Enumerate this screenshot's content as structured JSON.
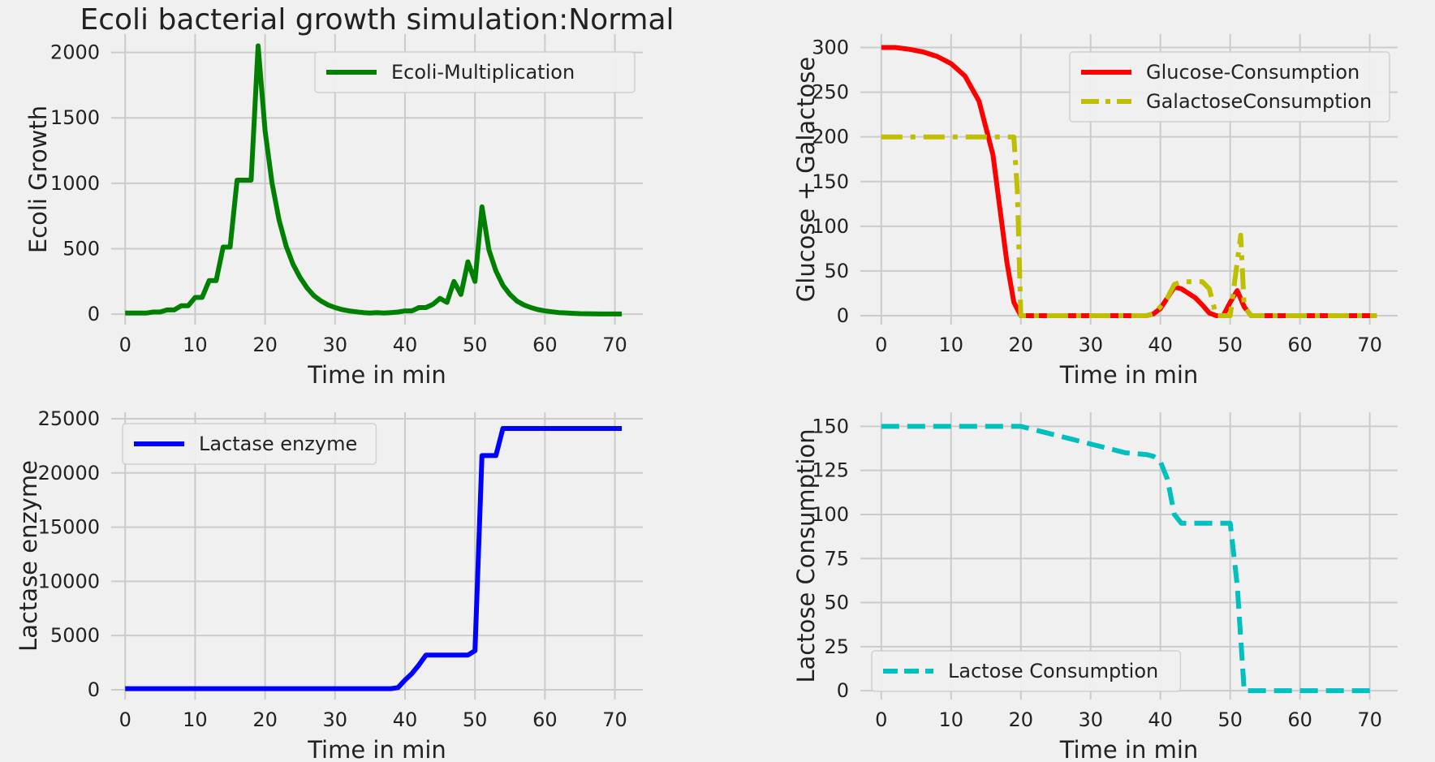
{
  "chart_data": [
    {
      "type": "line",
      "title": "Ecoli bacterial growth simulation:Normal",
      "xlabel": "Time in min",
      "ylabel": "Ecoli Growth",
      "xlim": [
        -2,
        74
      ],
      "ylim": [
        -80,
        2140
      ],
      "xticks": [
        0,
        10,
        20,
        30,
        40,
        50,
        60,
        70
      ],
      "yticks": [
        0,
        500,
        1000,
        1500,
        2000
      ],
      "grid": true,
      "legend_position": "top-right",
      "series": [
        {
          "name": "Ecoli-Multiplication",
          "color": "#008000",
          "style": "solid",
          "x": [
            0,
            1,
            2,
            3,
            4,
            5,
            6,
            7,
            8,
            9,
            10,
            11,
            12,
            13,
            14,
            15,
            16,
            17,
            18,
            19,
            20,
            21,
            22,
            23,
            24,
            25,
            26,
            27,
            28,
            29,
            30,
            31,
            32,
            33,
            34,
            35,
            36,
            37,
            38,
            39,
            40,
            41,
            42,
            43,
            44,
            45,
            46,
            47,
            48,
            49,
            50,
            51,
            52,
            53,
            54,
            55,
            56,
            57,
            58,
            59,
            60,
            61,
            62,
            63,
            64,
            65,
            66,
            67,
            68,
            69,
            70,
            71
          ],
          "y": [
            8,
            8,
            8,
            8,
            16,
            16,
            32,
            32,
            64,
            64,
            128,
            128,
            256,
            256,
            512,
            512,
            1024,
            1024,
            1024,
            2050,
            1400,
            1000,
            720,
            520,
            380,
            280,
            200,
            140,
            100,
            70,
            50,
            35,
            25,
            18,
            12,
            8,
            12,
            8,
            12,
            16,
            25,
            25,
            50,
            50,
            75,
            120,
            90,
            250,
            150,
            400,
            250,
            820,
            490,
            330,
            220,
            150,
            100,
            70,
            50,
            35,
            25,
            18,
            12,
            9,
            6,
            4,
            3,
            2,
            1,
            1,
            1,
            1
          ]
        }
      ]
    },
    {
      "type": "line",
      "title": "",
      "xlabel": "Time in min",
      "ylabel": "Glucose + Galactose",
      "xlim": [
        -3,
        74
      ],
      "ylim": [
        -10,
        315
      ],
      "xticks": [
        0,
        10,
        20,
        30,
        40,
        50,
        60,
        70
      ],
      "yticks": [
        0,
        50,
        100,
        150,
        200,
        250,
        300
      ],
      "grid": true,
      "legend_position": "top-right",
      "series": [
        {
          "name": "Glucose-Consumption",
          "color": "#ff0000",
          "style": "solid",
          "x": [
            0,
            2,
            4,
            6,
            8,
            10,
            12,
            14,
            16,
            17,
            18,
            19,
            20,
            21,
            22,
            30,
            38,
            39,
            40,
            41,
            42,
            43,
            44,
            45,
            46,
            47,
            48,
            49,
            50,
            51,
            52,
            53,
            54,
            60,
            70,
            71
          ],
          "y": [
            300,
            300,
            298,
            295,
            290,
            282,
            268,
            240,
            180,
            120,
            60,
            15,
            0,
            0,
            0,
            0,
            0,
            2,
            8,
            20,
            32,
            30,
            25,
            20,
            12,
            3,
            0,
            0,
            15,
            28,
            10,
            0,
            0,
            0,
            0,
            0
          ]
        },
        {
          "name": "GalactoseConsumption",
          "color": "#bfbf00",
          "style": "dashdot",
          "x": [
            0,
            19,
            19.5,
            20,
            21,
            38,
            39,
            40,
            41,
            42,
            43,
            44,
            45,
            46,
            47,
            48,
            49,
            50,
            51,
            51.5,
            52,
            53,
            54,
            70,
            71
          ],
          "y": [
            200,
            200,
            140,
            0,
            0,
            0,
            2,
            10,
            20,
            35,
            38,
            38,
            38,
            38,
            30,
            0,
            0,
            0,
            60,
            90,
            10,
            0,
            0,
            0,
            0
          ]
        }
      ]
    },
    {
      "type": "line",
      "title": "",
      "xlabel": "Time in min",
      "ylabel": "Lactase enzyme",
      "xlim": [
        -2,
        74
      ],
      "ylim": [
        -900,
        25600
      ],
      "xticks": [
        0,
        10,
        20,
        30,
        40,
        50,
        60,
        70
      ],
      "yticks": [
        0,
        5000,
        10000,
        15000,
        20000,
        25000
      ],
      "grid": true,
      "legend_position": "top-left",
      "series": [
        {
          "name": "Lactase enzyme",
          "color": "#0000ff",
          "style": "solid",
          "x": [
            0,
            38,
            39,
            40,
            41,
            42,
            43,
            44,
            45,
            46,
            47,
            48,
            49,
            50,
            51,
            52,
            53,
            54,
            60,
            70,
            71
          ],
          "y": [
            100,
            100,
            200,
            900,
            1500,
            2300,
            3200,
            3200,
            3200,
            3200,
            3200,
            3200,
            3200,
            3600,
            21600,
            21600,
            21600,
            24100,
            24100,
            24100,
            24100
          ]
        }
      ]
    },
    {
      "type": "line",
      "title": "",
      "xlabel": "Time in min",
      "ylabel": "Lactose Consumption",
      "xlim": [
        -3,
        74
      ],
      "ylim": [
        -5,
        158
      ],
      "xticks": [
        0,
        10,
        20,
        30,
        40,
        50,
        60,
        70
      ],
      "yticks": [
        0,
        25,
        50,
        75,
        100,
        125,
        150
      ],
      "grid": true,
      "legend_position": "bottom-left",
      "series": [
        {
          "name": "Lactose Consumption",
          "color": "#00bfbf",
          "style": "dashed",
          "x": [
            0,
            20,
            25,
            30,
            35,
            38,
            39,
            40,
            41,
            42,
            43,
            44,
            45,
            46,
            47,
            48,
            49,
            50,
            51,
            52,
            53,
            60,
            70,
            71
          ],
          "y": [
            150,
            150,
            145,
            140,
            135,
            134,
            133,
            130,
            120,
            100,
            95,
            95,
            95,
            95,
            95,
            95,
            95,
            95,
            60,
            0,
            0,
            0,
            0,
            0
          ]
        }
      ]
    }
  ]
}
